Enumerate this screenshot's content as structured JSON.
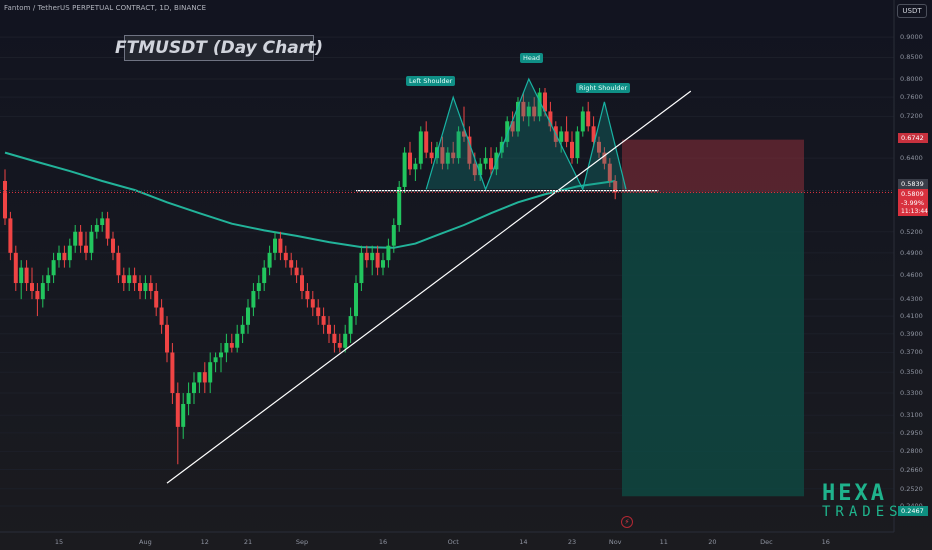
{
  "header": {
    "symbol_title": "Fantom / TetherUS PERPETUAL CONTRACT, 1D, BINANCE",
    "chart_title": "FTMUSDT (Day Chart)",
    "currency": "USDT"
  },
  "patterns": {
    "left_shoulder": "Left Shoulder",
    "head": "Head",
    "right_shoulder": "Right Shoulder"
  },
  "watermark": {
    "line1": "HEXA",
    "line2": "TRADES"
  },
  "icons": {
    "flash": "lightning-icon"
  },
  "colors": {
    "background": "#131722",
    "up_candle": "#22c55e",
    "down_candle": "#ef4444",
    "moving_average": "#22b39a",
    "pattern_fill": "#0f8f86",
    "stop_zone": "#8c2f3a",
    "target_zone": "#0e4d45"
  },
  "chart_data": {
    "type": "candlestick",
    "interval": "1D",
    "y_scale": "log",
    "ylim": [
      0.234,
      0.95
    ],
    "y_tick_labels": [
      "0.9000",
      "0.8500",
      "0.8000",
      "0.7600",
      "0.7200",
      "0.6400",
      "0.5200",
      "0.4900",
      "0.4600",
      "0.4300",
      "0.4100",
      "0.3900",
      "0.3700",
      "0.3500",
      "0.3300",
      "0.3100",
      "0.2950",
      "0.2800",
      "0.2660",
      "0.2520",
      "0.2400"
    ],
    "x_tick_labels": [
      "15",
      "Aug",
      "12",
      "21",
      "Sep",
      "16",
      "Oct",
      "14",
      "23",
      "Nov",
      "11",
      "20",
      "Dec",
      "16"
    ],
    "price_labels": {
      "stop_level": "0.6742",
      "neckline": "0.5839",
      "current": "0.5809",
      "change": "-3.99%",
      "countdown": "11:13:44",
      "target": "0.2467"
    },
    "levels": {
      "stop": 0.6742,
      "neckline": 0.5839,
      "current": 0.5809,
      "target": 0.2467
    },
    "candles": [
      [
        0.6,
        0.62,
        0.53,
        0.54
      ],
      [
        0.54,
        0.55,
        0.48,
        0.49
      ],
      [
        0.49,
        0.5,
        0.44,
        0.45
      ],
      [
        0.45,
        0.48,
        0.43,
        0.47
      ],
      [
        0.47,
        0.48,
        0.44,
        0.45
      ],
      [
        0.45,
        0.47,
        0.43,
        0.44
      ],
      [
        0.44,
        0.45,
        0.41,
        0.43
      ],
      [
        0.43,
        0.46,
        0.42,
        0.45
      ],
      [
        0.45,
        0.47,
        0.44,
        0.46
      ],
      [
        0.46,
        0.49,
        0.45,
        0.48
      ],
      [
        0.48,
        0.5,
        0.47,
        0.49
      ],
      [
        0.49,
        0.5,
        0.47,
        0.48
      ],
      [
        0.48,
        0.51,
        0.47,
        0.5
      ],
      [
        0.5,
        0.53,
        0.49,
        0.52
      ],
      [
        0.52,
        0.53,
        0.49,
        0.5
      ],
      [
        0.5,
        0.52,
        0.48,
        0.49
      ],
      [
        0.49,
        0.53,
        0.48,
        0.52
      ],
      [
        0.52,
        0.54,
        0.51,
        0.53
      ],
      [
        0.53,
        0.55,
        0.52,
        0.54
      ],
      [
        0.54,
        0.55,
        0.5,
        0.51
      ],
      [
        0.51,
        0.52,
        0.48,
        0.49
      ],
      [
        0.49,
        0.5,
        0.45,
        0.46
      ],
      [
        0.46,
        0.47,
        0.44,
        0.45
      ],
      [
        0.45,
        0.47,
        0.44,
        0.46
      ],
      [
        0.46,
        0.47,
        0.44,
        0.45
      ],
      [
        0.45,
        0.46,
        0.43,
        0.44
      ],
      [
        0.44,
        0.46,
        0.43,
        0.45
      ],
      [
        0.45,
        0.46,
        0.43,
        0.44
      ],
      [
        0.44,
        0.45,
        0.41,
        0.42
      ],
      [
        0.42,
        0.43,
        0.39,
        0.4
      ],
      [
        0.4,
        0.41,
        0.36,
        0.37
      ],
      [
        0.37,
        0.38,
        0.32,
        0.33
      ],
      [
        0.33,
        0.34,
        0.27,
        0.3
      ],
      [
        0.3,
        0.33,
        0.29,
        0.32
      ],
      [
        0.32,
        0.34,
        0.31,
        0.33
      ],
      [
        0.33,
        0.35,
        0.32,
        0.34
      ],
      [
        0.34,
        0.35,
        0.33,
        0.35
      ],
      [
        0.35,
        0.36,
        0.33,
        0.34
      ],
      [
        0.34,
        0.37,
        0.33,
        0.36
      ],
      [
        0.36,
        0.37,
        0.35,
        0.365
      ],
      [
        0.365,
        0.38,
        0.35,
        0.37
      ],
      [
        0.37,
        0.39,
        0.36,
        0.38
      ],
      [
        0.38,
        0.39,
        0.37,
        0.375
      ],
      [
        0.375,
        0.4,
        0.37,
        0.39
      ],
      [
        0.39,
        0.41,
        0.38,
        0.4
      ],
      [
        0.4,
        0.43,
        0.39,
        0.42
      ],
      [
        0.42,
        0.45,
        0.41,
        0.44
      ],
      [
        0.44,
        0.46,
        0.43,
        0.45
      ],
      [
        0.45,
        0.48,
        0.44,
        0.47
      ],
      [
        0.47,
        0.5,
        0.46,
        0.49
      ],
      [
        0.49,
        0.52,
        0.48,
        0.51
      ],
      [
        0.51,
        0.52,
        0.48,
        0.49
      ],
      [
        0.49,
        0.5,
        0.47,
        0.48
      ],
      [
        0.48,
        0.49,
        0.46,
        0.47
      ],
      [
        0.47,
        0.48,
        0.45,
        0.46
      ],
      [
        0.46,
        0.47,
        0.43,
        0.44
      ],
      [
        0.44,
        0.45,
        0.42,
        0.43
      ],
      [
        0.43,
        0.44,
        0.41,
        0.42
      ],
      [
        0.42,
        0.43,
        0.4,
        0.41
      ],
      [
        0.41,
        0.42,
        0.39,
        0.4
      ],
      [
        0.4,
        0.41,
        0.38,
        0.39
      ],
      [
        0.39,
        0.4,
        0.37,
        0.38
      ],
      [
        0.38,
        0.39,
        0.37,
        0.375
      ],
      [
        0.375,
        0.4,
        0.37,
        0.39
      ],
      [
        0.39,
        0.42,
        0.38,
        0.41
      ],
      [
        0.41,
        0.46,
        0.4,
        0.45
      ],
      [
        0.45,
        0.5,
        0.44,
        0.49
      ],
      [
        0.49,
        0.5,
        0.47,
        0.48
      ],
      [
        0.48,
        0.5,
        0.46,
        0.49
      ],
      [
        0.49,
        0.5,
        0.46,
        0.47
      ],
      [
        0.47,
        0.49,
        0.46,
        0.48
      ],
      [
        0.48,
        0.51,
        0.47,
        0.5
      ],
      [
        0.5,
        0.54,
        0.49,
        0.53
      ],
      [
        0.53,
        0.6,
        0.52,
        0.59
      ],
      [
        0.59,
        0.66,
        0.58,
        0.65
      ],
      [
        0.65,
        0.67,
        0.61,
        0.62
      ],
      [
        0.62,
        0.64,
        0.6,
        0.63
      ],
      [
        0.63,
        0.7,
        0.62,
        0.69
      ],
      [
        0.69,
        0.71,
        0.64,
        0.65
      ],
      [
        0.65,
        0.67,
        0.63,
        0.64
      ],
      [
        0.64,
        0.67,
        0.63,
        0.66
      ],
      [
        0.66,
        0.68,
        0.62,
        0.63
      ],
      [
        0.63,
        0.66,
        0.62,
        0.65
      ],
      [
        0.65,
        0.67,
        0.63,
        0.64
      ],
      [
        0.64,
        0.7,
        0.63,
        0.69
      ],
      [
        0.69,
        0.74,
        0.67,
        0.68
      ],
      [
        0.68,
        0.7,
        0.62,
        0.63
      ],
      [
        0.63,
        0.65,
        0.6,
        0.61
      ],
      [
        0.61,
        0.64,
        0.6,
        0.63
      ],
      [
        0.63,
        0.66,
        0.62,
        0.64
      ],
      [
        0.64,
        0.66,
        0.61,
        0.62
      ],
      [
        0.62,
        0.66,
        0.61,
        0.65
      ],
      [
        0.65,
        0.68,
        0.64,
        0.67
      ],
      [
        0.67,
        0.72,
        0.66,
        0.71
      ],
      [
        0.71,
        0.73,
        0.68,
        0.69
      ],
      [
        0.69,
        0.76,
        0.68,
        0.75
      ],
      [
        0.75,
        0.77,
        0.71,
        0.72
      ],
      [
        0.72,
        0.75,
        0.7,
        0.74
      ],
      [
        0.74,
        0.76,
        0.71,
        0.72
      ],
      [
        0.72,
        0.78,
        0.71,
        0.77
      ],
      [
        0.77,
        0.78,
        0.72,
        0.73
      ],
      [
        0.73,
        0.75,
        0.69,
        0.7
      ],
      [
        0.7,
        0.71,
        0.66,
        0.67
      ],
      [
        0.67,
        0.7,
        0.65,
        0.69
      ],
      [
        0.69,
        0.72,
        0.66,
        0.67
      ],
      [
        0.67,
        0.69,
        0.63,
        0.64
      ],
      [
        0.64,
        0.7,
        0.63,
        0.69
      ],
      [
        0.69,
        0.74,
        0.68,
        0.73
      ],
      [
        0.73,
        0.75,
        0.69,
        0.7
      ],
      [
        0.7,
        0.72,
        0.66,
        0.67
      ],
      [
        0.67,
        0.68,
        0.64,
        0.65
      ],
      [
        0.65,
        0.66,
        0.62,
        0.63
      ],
      [
        0.63,
        0.64,
        0.59,
        0.6
      ],
      [
        0.6,
        0.61,
        0.57,
        0.5809
      ]
    ],
    "moving_average": [
      [
        0,
        0.65
      ],
      [
        6,
        0.633
      ],
      [
        12,
        0.617
      ],
      [
        18,
        0.6
      ],
      [
        24,
        0.585
      ],
      [
        30,
        0.565
      ],
      [
        36,
        0.548
      ],
      [
        42,
        0.532
      ],
      [
        48,
        0.522
      ],
      [
        54,
        0.514
      ],
      [
        60,
        0.505
      ],
      [
        66,
        0.498
      ],
      [
        72,
        0.497
      ],
      [
        76,
        0.503
      ],
      [
        80,
        0.515
      ],
      [
        85,
        0.53
      ],
      [
        90,
        0.548
      ],
      [
        95,
        0.565
      ],
      [
        100,
        0.578
      ],
      [
        106,
        0.591
      ],
      [
        113,
        0.6
      ]
    ]
  }
}
